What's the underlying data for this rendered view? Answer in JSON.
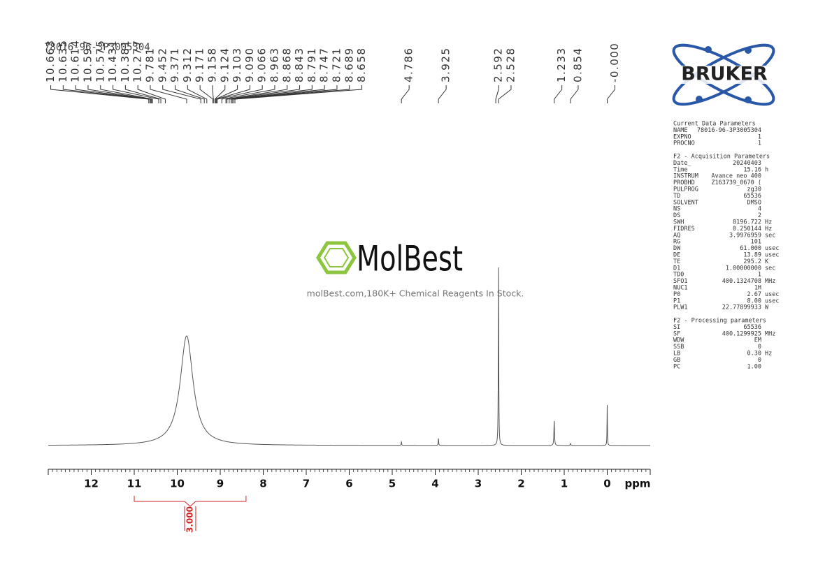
{
  "chart_data": {
    "type": "nmr",
    "title": "78016-96-3P3005304",
    "x_label": "ppm",
    "xlim": [
      13,
      -1
    ],
    "xticks": [
      12,
      11,
      10,
      9,
      8,
      7,
      6,
      5,
      4,
      3,
      2,
      1,
      0
    ],
    "peaks": [
      {
        "x": 9.781,
        "height": 157,
        "width": 0.18
      },
      {
        "x": 4.786,
        "height": 5,
        "width": 0.006
      },
      {
        "x": 3.925,
        "height": 10,
        "width": 0.006
      },
      {
        "x": 2.528,
        "height": 255,
        "width": 0.006
      },
      {
        "x": 1.233,
        "height": 35,
        "width": 0.008
      },
      {
        "x": 0.854,
        "height": 3,
        "width": 0.008
      },
      {
        "x": 0,
        "height": 58,
        "width": 0.005
      }
    ],
    "color": "#555555",
    "peak_labels": [
      10.663,
      10.635,
      10.614,
      10.597,
      10.575,
      10.431,
      10.381,
      10.277,
      9.781,
      9.452,
      9.371,
      9.312,
      9.171,
      9.158,
      9.124,
      9.103,
      {
        "value": 9.09,
        "label": "9.090"
      },
      9.066,
      8.963,
      8.868,
      8.843,
      8.791,
      8.747,
      8.721,
      8.689,
      8.658,
      4.786,
      3.925,
      2.592,
      2.528,
      1.233,
      0.854,
      {
        "value": 0,
        "label": "-0.000"
      }
    ],
    "integrals": [
      {
        "from": 11,
        "to": 8.4,
        "value": 3,
        "label": "3.000",
        "color": "#cc2222"
      }
    ]
  },
  "logo": {
    "text": "BRUKER"
  },
  "watermark": {
    "brand": "MolBest",
    "slogan": "molBest.com,180K+ Chemical Reagents In Stock."
  },
  "parameters": [
    {
      "title": "Current Data Parameters",
      "rows": [
        [
          "NAME",
          "78016-96-3P3005304",
          ""
        ],
        [
          "EXPNO",
          "1",
          ""
        ],
        [
          "PROCNO",
          "1",
          ""
        ]
      ]
    },
    {
      "title": "F2 - Acquisition Parameters",
      "rows": [
        [
          "Date_",
          "20240403",
          ""
        ],
        [
          "Time",
          "15.16",
          "h"
        ],
        [
          "INSTRUM",
          "Avance neo 400",
          ""
        ],
        [
          "PROBHD",
          "Z163739_0670 (",
          ""
        ],
        [
          "PULPROG",
          "zg30",
          ""
        ],
        [
          "TD",
          "65536",
          ""
        ],
        [
          "SOLVENT",
          "DMSO",
          ""
        ],
        [
          "NS",
          "4",
          ""
        ],
        [
          "DS",
          "2",
          ""
        ],
        [
          "SWH",
          "8196.722",
          "Hz"
        ],
        [
          "FIDRES",
          "0.250144",
          "Hz"
        ],
        [
          "AQ",
          "3.9976959",
          "sec"
        ],
        [
          "RG",
          "101",
          ""
        ],
        [
          "DW",
          "61.000",
          "usec"
        ],
        [
          "DE",
          "13.89",
          "usec"
        ],
        [
          "TE",
          "295.2",
          "K"
        ],
        [
          "D1",
          "1.00000000",
          "sec"
        ],
        [
          "TD0",
          "1",
          ""
        ],
        [
          "SFO1",
          "400.1324708",
          "MHz"
        ],
        [
          "NUC1",
          "1H",
          ""
        ],
        [
          "P0",
          "2.67",
          "usec"
        ],
        [
          "P1",
          "8.00",
          "usec"
        ],
        [
          "PLW1",
          "22.77899933",
          "W"
        ]
      ]
    },
    {
      "title": "F2 - Processing parameters",
      "rows": [
        [
          "SI",
          "65536",
          ""
        ],
        [
          "SF",
          "400.1299925",
          "MHz"
        ],
        [
          "WDW",
          "EM",
          ""
        ],
        [
          "SSB",
          "0",
          ""
        ],
        [
          "LB",
          "0.30",
          "Hz"
        ],
        [
          "GB",
          "0",
          ""
        ],
        [
          "PC",
          "1.00",
          ""
        ]
      ]
    }
  ]
}
